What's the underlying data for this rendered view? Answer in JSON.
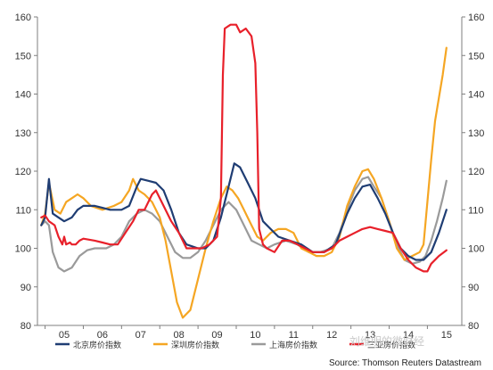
{
  "chart_data": {
    "type": "line",
    "title": "",
    "xlabel": "",
    "ylabel": "",
    "ylim": [
      80,
      160
    ],
    "yticks": [
      80,
      90,
      100,
      110,
      120,
      130,
      140,
      150,
      160
    ],
    "xlim": [
      2004.8,
      2015.9
    ],
    "xtick_labels": [
      "05",
      "06",
      "07",
      "08",
      "09",
      "10",
      "11",
      "12",
      "13",
      "14",
      "15"
    ],
    "grid": false,
    "legend_position": "bottom",
    "series": [
      {
        "name": "北京房价指数",
        "color": "#1f3d73",
        "points": [
          [
            2004.9,
            106
          ],
          [
            2005.0,
            108
          ],
          [
            2005.1,
            118
          ],
          [
            2005.2,
            109
          ],
          [
            2005.35,
            108
          ],
          [
            2005.5,
            107
          ],
          [
            2005.7,
            108
          ],
          [
            2005.85,
            110
          ],
          [
            2006.0,
            111
          ],
          [
            2006.3,
            111
          ],
          [
            2006.5,
            110.5
          ],
          [
            2006.7,
            110
          ],
          [
            2007.0,
            110
          ],
          [
            2007.2,
            111
          ],
          [
            2007.4,
            116
          ],
          [
            2007.5,
            118
          ],
          [
            2007.7,
            117.5
          ],
          [
            2007.9,
            117
          ],
          [
            2008.1,
            115
          ],
          [
            2008.3,
            110
          ],
          [
            2008.5,
            104
          ],
          [
            2008.7,
            101
          ],
          [
            2009.0,
            100
          ],
          [
            2009.2,
            100
          ],
          [
            2009.4,
            102
          ],
          [
            2009.6,
            108
          ],
          [
            2009.8,
            116
          ],
          [
            2009.95,
            122
          ],
          [
            2010.1,
            121
          ],
          [
            2010.3,
            117
          ],
          [
            2010.5,
            113
          ],
          [
            2010.7,
            107
          ],
          [
            2010.9,
            105
          ],
          [
            2011.1,
            103
          ],
          [
            2011.4,
            102
          ],
          [
            2011.7,
            101
          ],
          [
            2012.0,
            99
          ],
          [
            2012.3,
            99
          ],
          [
            2012.6,
            101
          ],
          [
            2012.9,
            109
          ],
          [
            2013.1,
            113
          ],
          [
            2013.3,
            116
          ],
          [
            2013.5,
            116.5
          ],
          [
            2013.7,
            113
          ],
          [
            2013.9,
            109
          ],
          [
            2014.1,
            104
          ],
          [
            2014.3,
            100
          ],
          [
            2014.5,
            98
          ],
          [
            2014.7,
            97
          ],
          [
            2014.9,
            97
          ],
          [
            2015.1,
            99
          ],
          [
            2015.3,
            104
          ],
          [
            2015.5,
            110
          ]
        ]
      },
      {
        "name": "深圳房价指数",
        "color": "#f5a623",
        "points": [
          [
            2004.9,
            106
          ],
          [
            2005.0,
            109
          ],
          [
            2005.1,
            117
          ],
          [
            2005.25,
            110
          ],
          [
            2005.4,
            109
          ],
          [
            2005.55,
            112
          ],
          [
            2005.7,
            113
          ],
          [
            2005.85,
            114
          ],
          [
            2006.0,
            113
          ],
          [
            2006.2,
            111
          ],
          [
            2006.5,
            110
          ],
          [
            2006.8,
            111
          ],
          [
            2007.0,
            112
          ],
          [
            2007.2,
            115
          ],
          [
            2007.3,
            118
          ],
          [
            2007.45,
            115
          ],
          [
            2007.6,
            114
          ],
          [
            2007.8,
            112
          ],
          [
            2008.0,
            108
          ],
          [
            2008.15,
            102
          ],
          [
            2008.3,
            94
          ],
          [
            2008.45,
            86
          ],
          [
            2008.6,
            82
          ],
          [
            2008.8,
            84
          ],
          [
            2009.0,
            92
          ],
          [
            2009.2,
            100
          ],
          [
            2009.4,
            107
          ],
          [
            2009.6,
            113
          ],
          [
            2009.75,
            116
          ],
          [
            2009.9,
            115
          ],
          [
            2010.05,
            113
          ],
          [
            2010.2,
            110
          ],
          [
            2010.4,
            106
          ],
          [
            2010.55,
            103
          ],
          [
            2010.7,
            102
          ],
          [
            2010.9,
            104
          ],
          [
            2011.1,
            105
          ],
          [
            2011.3,
            105
          ],
          [
            2011.5,
            104
          ],
          [
            2011.7,
            100
          ],
          [
            2011.9,
            99
          ],
          [
            2012.1,
            98
          ],
          [
            2012.3,
            98
          ],
          [
            2012.5,
            99
          ],
          [
            2012.7,
            103
          ],
          [
            2012.9,
            111
          ],
          [
            2013.1,
            116
          ],
          [
            2013.3,
            120
          ],
          [
            2013.45,
            120.5
          ],
          [
            2013.6,
            118
          ],
          [
            2013.8,
            113
          ],
          [
            2014.0,
            107
          ],
          [
            2014.2,
            100
          ],
          [
            2014.4,
            97
          ],
          [
            2014.6,
            98
          ],
          [
            2014.8,
            99
          ],
          [
            2014.9,
            101
          ],
          [
            2015.0,
            112
          ],
          [
            2015.1,
            123
          ],
          [
            2015.2,
            133
          ],
          [
            2015.3,
            139
          ],
          [
            2015.4,
            145
          ],
          [
            2015.5,
            152
          ]
        ]
      },
      {
        "name": "上海房价指数",
        "color": "#9a9a9a",
        "points": [
          [
            2004.9,
            106
          ],
          [
            2005.0,
            107
          ],
          [
            2005.1,
            106
          ],
          [
            2005.2,
            99
          ],
          [
            2005.35,
            95
          ],
          [
            2005.5,
            94
          ],
          [
            2005.7,
            95
          ],
          [
            2005.9,
            98
          ],
          [
            2006.1,
            99.5
          ],
          [
            2006.3,
            100
          ],
          [
            2006.6,
            100
          ],
          [
            2006.8,
            101
          ],
          [
            2007.0,
            103
          ],
          [
            2007.2,
            107
          ],
          [
            2007.4,
            109
          ],
          [
            2007.6,
            110
          ],
          [
            2007.8,
            109
          ],
          [
            2008.0,
            107
          ],
          [
            2008.2,
            103
          ],
          [
            2008.4,
            99
          ],
          [
            2008.6,
            97.5
          ],
          [
            2008.8,
            97.5
          ],
          [
            2009.0,
            99
          ],
          [
            2009.2,
            102
          ],
          [
            2009.4,
            106
          ],
          [
            2009.6,
            110
          ],
          [
            2009.8,
            112
          ],
          [
            2010.0,
            110
          ],
          [
            2010.2,
            106
          ],
          [
            2010.4,
            102
          ],
          [
            2010.6,
            101
          ],
          [
            2010.8,
            100
          ],
          [
            2011.0,
            101
          ],
          [
            2011.3,
            102
          ],
          [
            2011.6,
            101
          ],
          [
            2011.9,
            99
          ],
          [
            2012.2,
            99
          ],
          [
            2012.5,
            100
          ],
          [
            2012.7,
            104
          ],
          [
            2012.9,
            110
          ],
          [
            2013.1,
            115
          ],
          [
            2013.3,
            118
          ],
          [
            2013.45,
            118.5
          ],
          [
            2013.6,
            116
          ],
          [
            2013.8,
            113
          ],
          [
            2014.0,
            107
          ],
          [
            2014.2,
            101
          ],
          [
            2014.4,
            97
          ],
          [
            2014.6,
            96
          ],
          [
            2014.8,
            96.5
          ],
          [
            2014.95,
            98
          ],
          [
            2015.1,
            102
          ],
          [
            2015.25,
            107
          ],
          [
            2015.4,
            113
          ],
          [
            2015.5,
            117.5
          ]
        ]
      },
      {
        "name": "三亚房价指数",
        "color": "#e8202a",
        "points": [
          [
            2004.9,
            108
          ],
          [
            2005.0,
            108.5
          ],
          [
            2005.1,
            107
          ],
          [
            2005.25,
            106
          ],
          [
            2005.35,
            103
          ],
          [
            2005.45,
            101
          ],
          [
            2005.5,
            103
          ],
          [
            2005.55,
            101
          ],
          [
            2005.65,
            101.5
          ],
          [
            2005.7,
            101
          ],
          [
            2005.8,
            101
          ],
          [
            2005.9,
            102
          ],
          [
            2006.0,
            102.5
          ],
          [
            2006.3,
            102
          ],
          [
            2006.5,
            101.5
          ],
          [
            2006.7,
            101
          ],
          [
            2006.9,
            101
          ],
          [
            2007.1,
            104
          ],
          [
            2007.3,
            107
          ],
          [
            2007.45,
            110
          ],
          [
            2007.6,
            110
          ],
          [
            2007.8,
            114
          ],
          [
            2007.9,
            115
          ],
          [
            2008.1,
            111
          ],
          [
            2008.3,
            107
          ],
          [
            2008.5,
            104
          ],
          [
            2008.7,
            100
          ],
          [
            2008.9,
            100
          ],
          [
            2009.1,
            100
          ],
          [
            2009.3,
            101
          ],
          [
            2009.5,
            103
          ],
          [
            2009.6,
            113
          ],
          [
            2009.65,
            145
          ],
          [
            2009.7,
            157
          ],
          [
            2009.85,
            158
          ],
          [
            2010.0,
            158
          ],
          [
            2010.1,
            156
          ],
          [
            2010.25,
            157
          ],
          [
            2010.4,
            155
          ],
          [
            2010.5,
            148
          ],
          [
            2010.55,
            130
          ],
          [
            2010.6,
            105
          ],
          [
            2010.7,
            101
          ],
          [
            2010.8,
            100
          ],
          [
            2011.0,
            99
          ],
          [
            2011.2,
            102
          ],
          [
            2011.4,
            102
          ],
          [
            2011.6,
            101
          ],
          [
            2011.8,
            100
          ],
          [
            2012.0,
            99
          ],
          [
            2012.3,
            99
          ],
          [
            2012.5,
            100
          ],
          [
            2012.7,
            102
          ],
          [
            2012.9,
            103
          ],
          [
            2013.1,
            104
          ],
          [
            2013.3,
            105
          ],
          [
            2013.5,
            105.5
          ],
          [
            2013.7,
            105
          ],
          [
            2013.9,
            104.5
          ],
          [
            2014.1,
            104
          ],
          [
            2014.3,
            100
          ],
          [
            2014.5,
            97
          ],
          [
            2014.7,
            95
          ],
          [
            2014.9,
            94
          ],
          [
            2015.0,
            94
          ],
          [
            2015.1,
            96
          ],
          [
            2015.3,
            98
          ],
          [
            2015.5,
            99.5
          ]
        ]
      }
    ],
    "source": "Source: Thomson Reuters Datastream"
  },
  "watermark": "刘维明的微财经"
}
